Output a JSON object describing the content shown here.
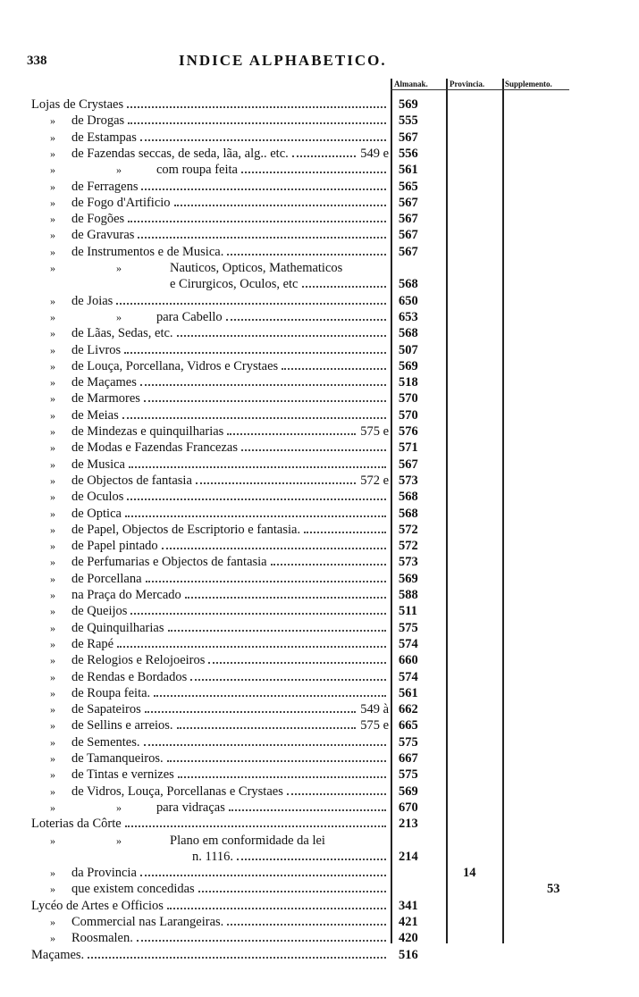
{
  "page_number": "338",
  "title": "INDICE ALPHABETICO.",
  "columns": {
    "almanak": "Almanak.",
    "provincia": "Provincia.",
    "supplemento": "Supplemento."
  },
  "rows": [
    {
      "level": 0,
      "text": "Lojas de Crystaes",
      "almanak": "569"
    },
    {
      "level": 1,
      "mark": "»",
      "text": "de Drogas",
      "almanak": "555"
    },
    {
      "level": 1,
      "mark": "»",
      "text": "de Estampas",
      "almanak": "567"
    },
    {
      "level": 1,
      "mark": "»",
      "text": "de Fazendas seccas, de seda, lãa, alg.. etc.",
      "pre": "549 e",
      "almanak": "556"
    },
    {
      "level": 2,
      "mark": "»",
      "mark2": "»",
      "text": "com roupa feita",
      "almanak": "561"
    },
    {
      "level": 1,
      "mark": "»",
      "text": "de Ferragens",
      "almanak": "565"
    },
    {
      "level": 1,
      "mark": "»",
      "text": "de Fogo d'Artificio",
      "almanak": "567"
    },
    {
      "level": 1,
      "mark": "»",
      "text": "de Fogões",
      "almanak": "567"
    },
    {
      "level": 1,
      "mark": "»",
      "text": "de Gravuras",
      "almanak": "567"
    },
    {
      "level": 1,
      "mark": "»",
      "text": "de Instrumentos e de Musica.",
      "almanak": "567"
    },
    {
      "level": 3,
      "mark": "»",
      "mark2": "»",
      "text": "Nauticos, Opticos, Mathematicos",
      "noleader": true
    },
    {
      "level": 3,
      "text": "e Cirurgicos, Oculos, etc",
      "almanak": "568"
    },
    {
      "level": 1,
      "mark": "»",
      "text": "de Joias",
      "almanak": "650"
    },
    {
      "level": 2,
      "mark": "»",
      "mark2": "»",
      "text": "para Cabello",
      "almanak": "653"
    },
    {
      "level": 1,
      "mark": "»",
      "text": "de Lãas, Sedas, etc.",
      "almanak": "568"
    },
    {
      "level": 1,
      "mark": "»",
      "text": "de Livros",
      "almanak": "507"
    },
    {
      "level": 1,
      "mark": "»",
      "text": "de Louça, Porcellana, Vidros e Crystaes",
      "almanak": "569"
    },
    {
      "level": 1,
      "mark": "»",
      "text": "de Maçames",
      "almanak": "518"
    },
    {
      "level": 1,
      "mark": "»",
      "text": "de Marmores",
      "almanak": "570"
    },
    {
      "level": 1,
      "mark": "»",
      "text": "de Meias",
      "almanak": "570"
    },
    {
      "level": 1,
      "mark": "»",
      "text": "de Mindezas e quinquilharias",
      "pre": "575 e",
      "almanak": "576"
    },
    {
      "level": 1,
      "mark": "»",
      "text": "de Modas e Fazendas Francezas",
      "almanak": "571"
    },
    {
      "level": 1,
      "mark": "»",
      "text": "de Musica",
      "almanak": "567"
    },
    {
      "level": 1,
      "mark": "»",
      "text": "de Objectos de fantasia",
      "pre": "572 e",
      "almanak": "573"
    },
    {
      "level": 1,
      "mark": "»",
      "text": "de Oculos",
      "almanak": "568"
    },
    {
      "level": 1,
      "mark": "»",
      "text": "de Optica",
      "almanak": "568"
    },
    {
      "level": 1,
      "mark": "»",
      "text": "de Papel, Objectos de Escriptorio e fantasia.",
      "almanak": "572"
    },
    {
      "level": 1,
      "mark": "»",
      "text": "de Papel pintado",
      "almanak": "572"
    },
    {
      "level": 1,
      "mark": "»",
      "text": "de Perfumarias e Objectos de fantasia",
      "almanak": "573"
    },
    {
      "level": 1,
      "mark": "»",
      "text": "de Porcellana",
      "almanak": "569"
    },
    {
      "level": 1,
      "mark": "»",
      "text": "na Praça do Mercado",
      "almanak": "588"
    },
    {
      "level": 1,
      "mark": "»",
      "text": "de Queijos",
      "almanak": "511"
    },
    {
      "level": 1,
      "mark": "»",
      "text": "de Quinquilharias",
      "almanak": "575"
    },
    {
      "level": 1,
      "mark": "»",
      "text": "de Rapé",
      "almanak": "574"
    },
    {
      "level": 1,
      "mark": "»",
      "text": "de Relogios e Relojoeiros",
      "almanak": "660"
    },
    {
      "level": 1,
      "mark": "»",
      "text": "de Rendas e Bordados",
      "almanak": "574"
    },
    {
      "level": 1,
      "mark": "»",
      "text": "de Roupa feita.",
      "almanak": "561"
    },
    {
      "level": 1,
      "mark": "»",
      "text": "de Sapateiros",
      "pre": "549 à",
      "almanak": "662"
    },
    {
      "level": 1,
      "mark": "»",
      "text": "de Sellins e arreios.",
      "pre": "575 e",
      "almanak": "665"
    },
    {
      "level": 1,
      "mark": "»",
      "text": "de Sementes.",
      "almanak": "575"
    },
    {
      "level": 1,
      "mark": "»",
      "text": "de Tamanqueiros.",
      "almanak": "667"
    },
    {
      "level": 1,
      "mark": "»",
      "text": "de Tintas e vernizes",
      "almanak": "575"
    },
    {
      "level": 1,
      "mark": "»",
      "text": "de Vidros, Louça, Porcellanas e Crystaes",
      "almanak": "569"
    },
    {
      "level": 2,
      "mark": "»",
      "mark2": "»",
      "text": "para vidraças",
      "almanak": "670"
    },
    {
      "level": 0,
      "text": "Loterias da Côrte",
      "almanak": "213"
    },
    {
      "level": 3,
      "mark": "»",
      "mark2": "»",
      "text": "Plano em conformidade da lei",
      "noleader": true
    },
    {
      "level": 4,
      "text": "n. 1116.",
      "almanak": "214"
    },
    {
      "level": 1,
      "mark": "»",
      "text": "da Provincia",
      "provincia": "14"
    },
    {
      "level": 1,
      "mark": "»",
      "text": "que existem concedidas",
      "supplemento": "53"
    },
    {
      "level": 0,
      "text": "Lycéo de Artes e Officios",
      "almanak": "341"
    },
    {
      "level": 1,
      "mark": "»",
      "text": "Commercial nas Larangeiras.",
      "almanak": "421"
    },
    {
      "level": 1,
      "mark": "»",
      "text": "Roosmalen.",
      "almanak": "420"
    },
    {
      "level": 0,
      "text": "Maçames.",
      "almanak": "516"
    }
  ]
}
